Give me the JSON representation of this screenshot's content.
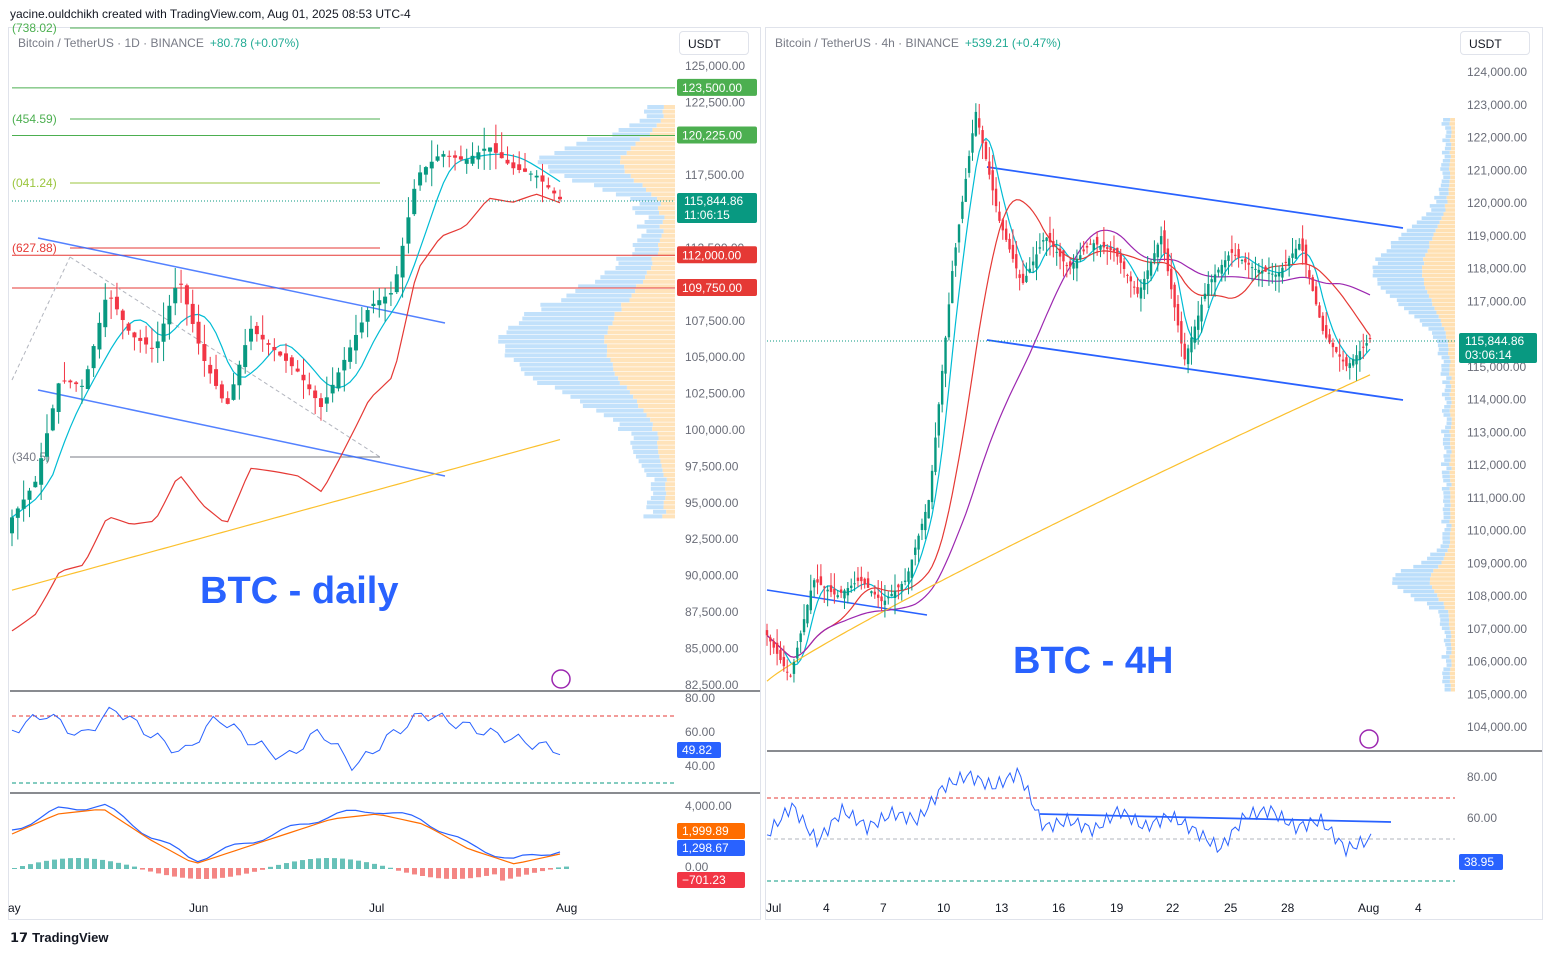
{
  "header": {
    "created_text": "yacine.ouldchikh created with TradingView.com, Aug 01, 2025 08:53 UTC-4"
  },
  "footer": {
    "brand": "TradingView"
  },
  "colors": {
    "up": "#089981",
    "down": "#f23645",
    "accent": "#2962ff",
    "rsi": "#2962ff",
    "macd": "#2962ff",
    "signal": "#ff6d00"
  },
  "left": {
    "symbol": "Bitcoin / TetherUS · 1D · BINANCE",
    "change": "+80.78 (+0.07%)",
    "currency": "USDT",
    "title": "BTC - daily",
    "fib_labels": [
      "(738.02)",
      "(454.59)",
      "(041.24)",
      "(627.88)",
      "(340.5)"
    ],
    "price_ticks": [
      "125,000.00",
      "122,500.00",
      "117,500.00",
      "112,500.00",
      "107,500.00",
      "105,000.00",
      "102,500.00",
      "100,000.00",
      "97,500.00",
      "95,000.00",
      "92,500.00",
      "90,000.00",
      "87,500.00",
      "85,000.00",
      "82,500.00"
    ],
    "price_tags": {
      "resistance_top": "123,500.00",
      "resistance_2": "120,225.00",
      "current": "115,844.86",
      "countdown": "11:06:15",
      "support_1": "112,000.00",
      "support_2": "109,750.00"
    },
    "rsi": {
      "ticks": [
        "80.00",
        "60.00",
        "40.00"
      ],
      "value": "49.82"
    },
    "macd": {
      "ticks": [
        "4,000.00",
        "0.00"
      ],
      "signal_value": "1,999.89",
      "macd_value": "1,298.67",
      "hist_value": "−701.23"
    },
    "time_labels": [
      "ay",
      "Jun",
      "Jul",
      "Aug"
    ]
  },
  "right": {
    "symbol": "Bitcoin / TetherUS · 4h · BINANCE",
    "change": "+539.21 (+0.47%)",
    "currency": "USDT",
    "title": "BTC - 4H",
    "price_ticks": [
      "124,000.00",
      "123,000.00",
      "122,000.00",
      "121,000.00",
      "120,000.00",
      "119,000.00",
      "118,000.00",
      "117,000.00",
      "115,000.00",
      "114,000.00",
      "113,000.00",
      "112,000.00",
      "111,000.00",
      "110,000.00",
      "109,000.00",
      "108,000.00",
      "107,000.00",
      "106,000.00",
      "105,000.00",
      "104,000.00"
    ],
    "price_tags": {
      "current": "115,844.86",
      "countdown": "03:06:14"
    },
    "rsi": {
      "ticks": [
        "80.00",
        "60.00"
      ],
      "value": "38.95"
    },
    "time_labels": [
      "Jul",
      "4",
      "7",
      "10",
      "13",
      "16",
      "19",
      "22",
      "25",
      "28",
      "Aug",
      "4"
    ]
  },
  "chart_data": [
    {
      "type": "line",
      "title": "BTC - daily",
      "x": [
        "May",
        "Jun",
        "Jul",
        "Aug"
      ],
      "ylim": [
        82500,
        126500
      ],
      "series": [
        {
          "name": "Bitcoin / TetherUS · 1D · BINANCE",
          "close_path": [
            94000,
            96500,
            103500,
            103000,
            109500,
            106500,
            105500,
            110500,
            105000,
            101500,
            107000,
            105500,
            104000,
            101500,
            105000,
            108500,
            109500,
            117500,
            119000,
            118500,
            119500,
            118000,
            117500,
            115844.86
          ]
        }
      ],
      "horizontal_levels": [
        123500,
        120225,
        112000,
        109750
      ],
      "annotations": [
        "123,500.00",
        "120,225.00",
        "112,000.00",
        "109,750.00"
      ]
    },
    {
      "type": "line",
      "title": "BTC - 4H",
      "x": [
        "Jul",
        "4",
        "7",
        "10",
        "13",
        "16",
        "19",
        "22",
        "25",
        "28",
        "Aug",
        "4"
      ],
      "ylim": [
        103800,
        124600
      ],
      "series": [
        {
          "name": "Bitcoin / TetherUS · 4h · BINANCE",
          "close_path": [
            106800,
            105500,
            108500,
            108000,
            108500,
            107800,
            108500,
            111000,
            118000,
            122800,
            119500,
            117500,
            119000,
            118000,
            118800,
            118500,
            117200,
            119000,
            115200,
            117500,
            118500,
            118000,
            117800,
            118800,
            116000,
            115000,
            115844.86
          ]
        }
      ],
      "annotations": [
        "115,844.86"
      ]
    }
  ]
}
